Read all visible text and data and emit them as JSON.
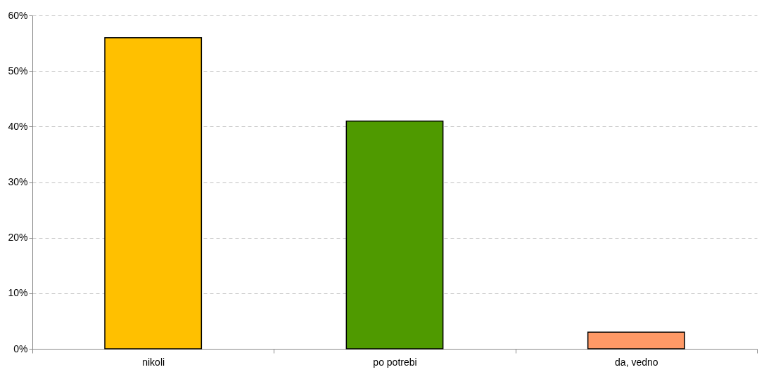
{
  "chart_data": {
    "type": "bar",
    "categories": [
      "nikoli",
      "po potrebi",
      "da, vedno"
    ],
    "values": [
      56,
      41,
      3
    ],
    "colors": [
      "#ffc000",
      "#4f9a00",
      "#ff9966"
    ],
    "ylim": [
      0,
      60
    ],
    "yticks": [
      {
        "value": 0,
        "label": "0%"
      },
      {
        "value": 10,
        "label": "10%"
      },
      {
        "value": 20,
        "label": "20%"
      },
      {
        "value": 30,
        "label": "30%"
      },
      {
        "value": 40,
        "label": "40%"
      },
      {
        "value": 50,
        "label": "50%"
      },
      {
        "value": 60,
        "label": "60%"
      }
    ],
    "grid": "y"
  }
}
